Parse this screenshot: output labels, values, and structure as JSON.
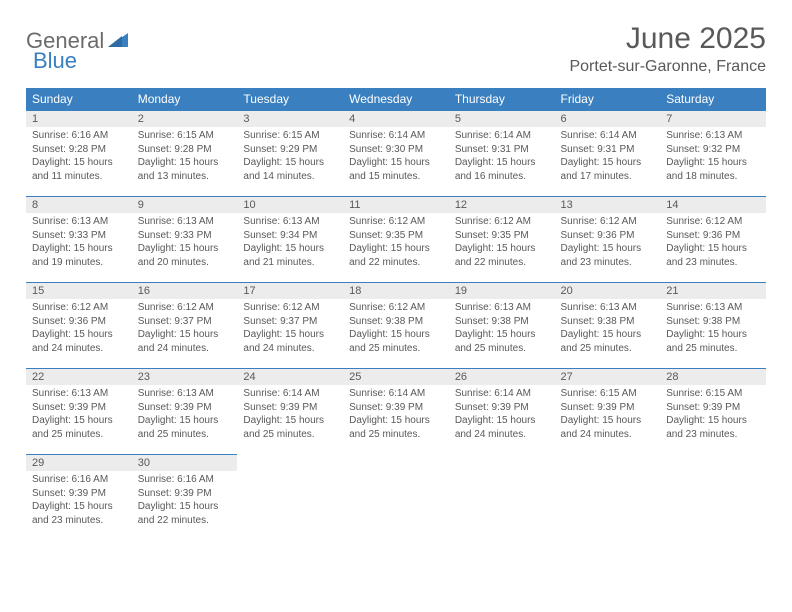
{
  "logo": {
    "word1": "General",
    "word2": "Blue"
  },
  "title": "June 2025",
  "location": "Portet-sur-Garonne, France",
  "columns": [
    "Sunday",
    "Monday",
    "Tuesday",
    "Wednesday",
    "Thursday",
    "Friday",
    "Saturday"
  ],
  "colors": {
    "header_bg": "#3a7fbf",
    "header_text": "#ffffff",
    "daynum_bg": "#ececec",
    "text": "#595959",
    "border": "#3a7fbf"
  },
  "typography": {
    "title_fontsize": 30,
    "location_fontsize": 16,
    "column_fontsize": 12,
    "daynum_fontsize": 11,
    "body_fontsize": 10
  },
  "weeks": [
    [
      {
        "day": "1",
        "sunrise": "Sunrise: 6:16 AM",
        "sunset": "Sunset: 9:28 PM",
        "daylight": "Daylight: 15 hours and 11 minutes."
      },
      {
        "day": "2",
        "sunrise": "Sunrise: 6:15 AM",
        "sunset": "Sunset: 9:28 PM",
        "daylight": "Daylight: 15 hours and 13 minutes."
      },
      {
        "day": "3",
        "sunrise": "Sunrise: 6:15 AM",
        "sunset": "Sunset: 9:29 PM",
        "daylight": "Daylight: 15 hours and 14 minutes."
      },
      {
        "day": "4",
        "sunrise": "Sunrise: 6:14 AM",
        "sunset": "Sunset: 9:30 PM",
        "daylight": "Daylight: 15 hours and 15 minutes."
      },
      {
        "day": "5",
        "sunrise": "Sunrise: 6:14 AM",
        "sunset": "Sunset: 9:31 PM",
        "daylight": "Daylight: 15 hours and 16 minutes."
      },
      {
        "day": "6",
        "sunrise": "Sunrise: 6:14 AM",
        "sunset": "Sunset: 9:31 PM",
        "daylight": "Daylight: 15 hours and 17 minutes."
      },
      {
        "day": "7",
        "sunrise": "Sunrise: 6:13 AM",
        "sunset": "Sunset: 9:32 PM",
        "daylight": "Daylight: 15 hours and 18 minutes."
      }
    ],
    [
      {
        "day": "8",
        "sunrise": "Sunrise: 6:13 AM",
        "sunset": "Sunset: 9:33 PM",
        "daylight": "Daylight: 15 hours and 19 minutes."
      },
      {
        "day": "9",
        "sunrise": "Sunrise: 6:13 AM",
        "sunset": "Sunset: 9:33 PM",
        "daylight": "Daylight: 15 hours and 20 minutes."
      },
      {
        "day": "10",
        "sunrise": "Sunrise: 6:13 AM",
        "sunset": "Sunset: 9:34 PM",
        "daylight": "Daylight: 15 hours and 21 minutes."
      },
      {
        "day": "11",
        "sunrise": "Sunrise: 6:12 AM",
        "sunset": "Sunset: 9:35 PM",
        "daylight": "Daylight: 15 hours and 22 minutes."
      },
      {
        "day": "12",
        "sunrise": "Sunrise: 6:12 AM",
        "sunset": "Sunset: 9:35 PM",
        "daylight": "Daylight: 15 hours and 22 minutes."
      },
      {
        "day": "13",
        "sunrise": "Sunrise: 6:12 AM",
        "sunset": "Sunset: 9:36 PM",
        "daylight": "Daylight: 15 hours and 23 minutes."
      },
      {
        "day": "14",
        "sunrise": "Sunrise: 6:12 AM",
        "sunset": "Sunset: 9:36 PM",
        "daylight": "Daylight: 15 hours and 23 minutes."
      }
    ],
    [
      {
        "day": "15",
        "sunrise": "Sunrise: 6:12 AM",
        "sunset": "Sunset: 9:36 PM",
        "daylight": "Daylight: 15 hours and 24 minutes."
      },
      {
        "day": "16",
        "sunrise": "Sunrise: 6:12 AM",
        "sunset": "Sunset: 9:37 PM",
        "daylight": "Daylight: 15 hours and 24 minutes."
      },
      {
        "day": "17",
        "sunrise": "Sunrise: 6:12 AM",
        "sunset": "Sunset: 9:37 PM",
        "daylight": "Daylight: 15 hours and 24 minutes."
      },
      {
        "day": "18",
        "sunrise": "Sunrise: 6:12 AM",
        "sunset": "Sunset: 9:38 PM",
        "daylight": "Daylight: 15 hours and 25 minutes."
      },
      {
        "day": "19",
        "sunrise": "Sunrise: 6:13 AM",
        "sunset": "Sunset: 9:38 PM",
        "daylight": "Daylight: 15 hours and 25 minutes."
      },
      {
        "day": "20",
        "sunrise": "Sunrise: 6:13 AM",
        "sunset": "Sunset: 9:38 PM",
        "daylight": "Daylight: 15 hours and 25 minutes."
      },
      {
        "day": "21",
        "sunrise": "Sunrise: 6:13 AM",
        "sunset": "Sunset: 9:38 PM",
        "daylight": "Daylight: 15 hours and 25 minutes."
      }
    ],
    [
      {
        "day": "22",
        "sunrise": "Sunrise: 6:13 AM",
        "sunset": "Sunset: 9:39 PM",
        "daylight": "Daylight: 15 hours and 25 minutes."
      },
      {
        "day": "23",
        "sunrise": "Sunrise: 6:13 AM",
        "sunset": "Sunset: 9:39 PM",
        "daylight": "Daylight: 15 hours and 25 minutes."
      },
      {
        "day": "24",
        "sunrise": "Sunrise: 6:14 AM",
        "sunset": "Sunset: 9:39 PM",
        "daylight": "Daylight: 15 hours and 25 minutes."
      },
      {
        "day": "25",
        "sunrise": "Sunrise: 6:14 AM",
        "sunset": "Sunset: 9:39 PM",
        "daylight": "Daylight: 15 hours and 25 minutes."
      },
      {
        "day": "26",
        "sunrise": "Sunrise: 6:14 AM",
        "sunset": "Sunset: 9:39 PM",
        "daylight": "Daylight: 15 hours and 24 minutes."
      },
      {
        "day": "27",
        "sunrise": "Sunrise: 6:15 AM",
        "sunset": "Sunset: 9:39 PM",
        "daylight": "Daylight: 15 hours and 24 minutes."
      },
      {
        "day": "28",
        "sunrise": "Sunrise: 6:15 AM",
        "sunset": "Sunset: 9:39 PM",
        "daylight": "Daylight: 15 hours and 23 minutes."
      }
    ],
    [
      {
        "day": "29",
        "sunrise": "Sunrise: 6:16 AM",
        "sunset": "Sunset: 9:39 PM",
        "daylight": "Daylight: 15 hours and 23 minutes."
      },
      {
        "day": "30",
        "sunrise": "Sunrise: 6:16 AM",
        "sunset": "Sunset: 9:39 PM",
        "daylight": "Daylight: 15 hours and 22 minutes."
      },
      null,
      null,
      null,
      null,
      null
    ]
  ]
}
